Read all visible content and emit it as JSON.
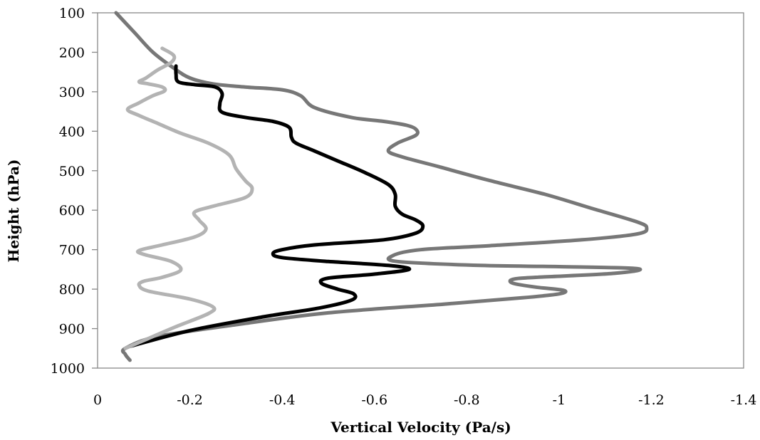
{
  "chart_data": {
    "type": "line",
    "title": "",
    "xlabel": "Vertical Velocity (Pa/s)",
    "ylabel": "Height (hPa)",
    "xlim": [
      0,
      -1.4
    ],
    "ylim": [
      1000,
      100
    ],
    "y_inverted": true,
    "x_ticks": [
      0,
      -0.2,
      -0.4,
      -0.6,
      -0.8,
      -1,
      -1.2,
      -1.4
    ],
    "x_tick_labels": [
      "0",
      "-0.2",
      "-0.4",
      "-0.6",
      "-0.8",
      "-1",
      "-1.2",
      "-1.4"
    ],
    "y_ticks": [
      100,
      200,
      300,
      400,
      500,
      600,
      700,
      800,
      900,
      1000
    ],
    "y_tick_labels": [
      "100",
      "200",
      "300",
      "400",
      "500",
      "600",
      "700",
      "800",
      "900",
      "1000"
    ],
    "grid": false,
    "legend": "none",
    "series": [
      {
        "color": "#777777",
        "points": [
          [
            -0.04,
            100
          ],
          [
            -0.08,
            150
          ],
          [
            -0.12,
            200
          ],
          [
            -0.165,
            240
          ],
          [
            -0.2,
            265
          ],
          [
            -0.25,
            280
          ],
          [
            -0.32,
            288
          ],
          [
            -0.4,
            295
          ],
          [
            -0.44,
            310
          ],
          [
            -0.47,
            340
          ],
          [
            -0.55,
            365
          ],
          [
            -0.62,
            375
          ],
          [
            -0.67,
            385
          ],
          [
            -0.69,
            395
          ],
          [
            -0.69,
            410
          ],
          [
            -0.65,
            430
          ],
          [
            -0.63,
            450
          ],
          [
            -0.66,
            465
          ],
          [
            -0.74,
            490
          ],
          [
            -0.85,
            525
          ],
          [
            -0.97,
            560
          ],
          [
            -1.07,
            595
          ],
          [
            -1.17,
            630
          ],
          [
            -1.19,
            645
          ],
          [
            -1.17,
            660
          ],
          [
            -1.05,
            675
          ],
          [
            -0.85,
            690
          ],
          [
            -0.7,
            700
          ],
          [
            -0.64,
            715
          ],
          [
            -0.65,
            730
          ],
          [
            -0.83,
            740
          ],
          [
            -1.0,
            743
          ],
          [
            -1.17,
            748
          ],
          [
            -1.12,
            760
          ],
          [
            -0.95,
            770
          ],
          [
            -0.9,
            775
          ],
          [
            -0.9,
            785
          ],
          [
            -0.95,
            795
          ],
          [
            -1.01,
            803
          ],
          [
            -1.0,
            812
          ],
          [
            -0.92,
            822
          ],
          [
            -0.75,
            838
          ],
          [
            -0.5,
            860
          ],
          [
            -0.3,
            890
          ],
          [
            -0.13,
            920
          ],
          [
            -0.06,
            950
          ],
          [
            -0.06,
            965
          ],
          [
            -0.07,
            980
          ]
        ]
      },
      {
        "color": "#000000",
        "points": [
          [
            -0.17,
            235
          ],
          [
            -0.17,
            255
          ],
          [
            -0.175,
            275
          ],
          [
            -0.21,
            282
          ],
          [
            -0.255,
            288
          ],
          [
            -0.27,
            305
          ],
          [
            -0.265,
            330
          ],
          [
            -0.27,
            352
          ],
          [
            -0.32,
            365
          ],
          [
            -0.38,
            375
          ],
          [
            -0.415,
            390
          ],
          [
            -0.42,
            415
          ],
          [
            -0.43,
            430
          ],
          [
            -0.47,
            450
          ],
          [
            -0.52,
            475
          ],
          [
            -0.58,
            505
          ],
          [
            -0.63,
            535
          ],
          [
            -0.645,
            560
          ],
          [
            -0.645,
            590
          ],
          [
            -0.66,
            610
          ],
          [
            -0.69,
            625
          ],
          [
            -0.705,
            640
          ],
          [
            -0.69,
            658
          ],
          [
            -0.62,
            675
          ],
          [
            -0.47,
            688
          ],
          [
            -0.4,
            700
          ],
          [
            -0.38,
            710
          ],
          [
            -0.4,
            720
          ],
          [
            -0.5,
            730
          ],
          [
            -0.63,
            740
          ],
          [
            -0.675,
            750
          ],
          [
            -0.6,
            762
          ],
          [
            -0.5,
            772
          ],
          [
            -0.485,
            785
          ],
          [
            -0.52,
            800
          ],
          [
            -0.555,
            812
          ],
          [
            -0.55,
            828
          ],
          [
            -0.48,
            848
          ],
          [
            -0.36,
            870
          ],
          [
            -0.2,
            905
          ],
          [
            -0.07,
            945
          ]
        ]
      },
      {
        "color": "#b3b3b3",
        "points": [
          [
            -0.14,
            190
          ],
          [
            -0.165,
            208
          ],
          [
            -0.16,
            225
          ],
          [
            -0.13,
            245
          ],
          [
            -0.105,
            265
          ],
          [
            -0.09,
            275
          ],
          [
            -0.11,
            280
          ],
          [
            -0.14,
            288
          ],
          [
            -0.145,
            298
          ],
          [
            -0.12,
            310
          ],
          [
            -0.09,
            328
          ],
          [
            -0.065,
            345
          ],
          [
            -0.09,
            360
          ],
          [
            -0.13,
            380
          ],
          [
            -0.18,
            405
          ],
          [
            -0.24,
            430
          ],
          [
            -0.285,
            460
          ],
          [
            -0.3,
            495
          ],
          [
            -0.32,
            525
          ],
          [
            -0.335,
            545
          ],
          [
            -0.32,
            568
          ],
          [
            -0.25,
            590
          ],
          [
            -0.21,
            605
          ],
          [
            -0.22,
            625
          ],
          [
            -0.235,
            648
          ],
          [
            -0.21,
            668
          ],
          [
            -0.14,
            688
          ],
          [
            -0.09,
            702
          ],
          [
            -0.1,
            712
          ],
          [
            -0.16,
            730
          ],
          [
            -0.18,
            752
          ],
          [
            -0.14,
            770
          ],
          [
            -0.1,
            780
          ],
          [
            -0.09,
            790
          ],
          [
            -0.11,
            805
          ],
          [
            -0.2,
            825
          ],
          [
            -0.25,
            845
          ],
          [
            -0.24,
            862
          ],
          [
            -0.17,
            895
          ],
          [
            -0.11,
            925
          ],
          [
            -0.06,
            950
          ]
        ]
      }
    ]
  }
}
